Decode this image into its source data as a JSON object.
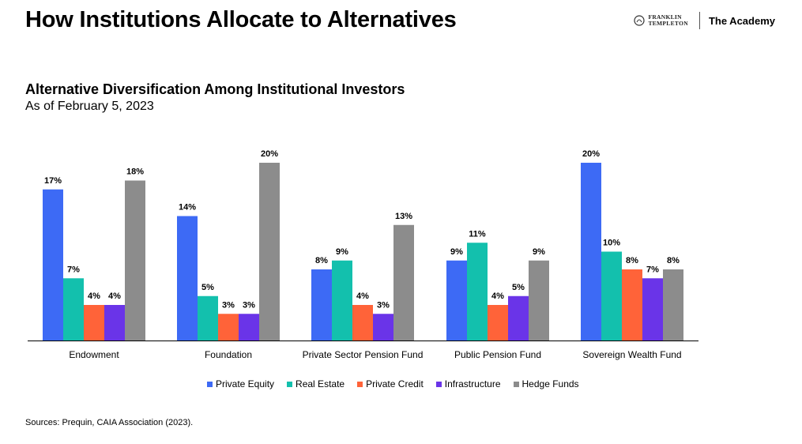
{
  "header": {
    "title": "How Institutions Allocate to Alternatives",
    "brand_line1": "FRANKLIN",
    "brand_line2": "TEMPLETON",
    "brand_academy": "The Academy"
  },
  "source": "Sources: Prequin, CAIA Association (2023).",
  "colors": {
    "Private Equity": "#3d6af5",
    "Real Estate": "#13c0ad",
    "Private Credit": "#ff6339",
    "Infrastructure": "#6a34e8",
    "Hedge Funds": "#8c8c8c"
  },
  "chart_data": {
    "type": "bar",
    "title": "Alternative Diversification Among Institutional Investors",
    "subtitle": "As of February 5, 2023",
    "categories": [
      "Endowment",
      "Foundation",
      "Private Sector Pension Fund",
      "Public Pension Fund",
      "Sovereign Wealth Fund"
    ],
    "series": [
      {
        "name": "Private Equity",
        "values": [
          17,
          14,
          8,
          9,
          20
        ]
      },
      {
        "name": "Real Estate",
        "values": [
          7,
          5,
          9,
          11,
          10
        ]
      },
      {
        "name": "Private Credit",
        "values": [
          4,
          3,
          4,
          4,
          8
        ]
      },
      {
        "name": "Infrastructure",
        "values": [
          4,
          3,
          3,
          5,
          7
        ]
      },
      {
        "name": "Hedge Funds",
        "values": [
          18,
          20,
          13,
          9,
          8
        ]
      }
    ],
    "value_suffix": "%",
    "ylim": [
      0,
      20
    ],
    "grid": false,
    "legend_position": "bottom"
  }
}
